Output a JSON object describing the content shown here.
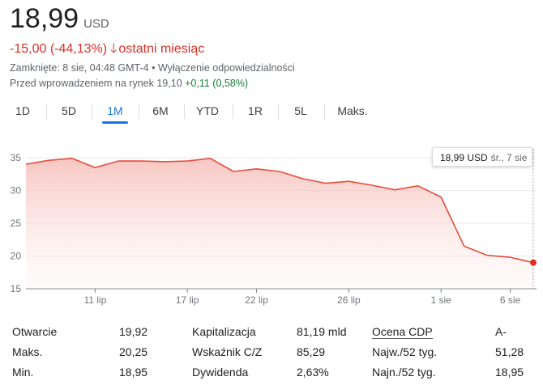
{
  "price": {
    "value": "18,99",
    "currency": "USD"
  },
  "change": {
    "text": "-15,00 (-44,13%)",
    "arrow": "🡓",
    "period": "ostatni miesiąc"
  },
  "meta": {
    "closed": "Zamknięte: 8 sie, 04:48 GMT-4",
    "bullet": "•",
    "disclaimer": "Wyłączenie odpowiedzialności",
    "premarket_label": "Przed wprowadzeniem na rynek",
    "premarket_price": "19,10",
    "premarket_change": "+0,11 (0,58%)"
  },
  "tabs": [
    "1D",
    "5D",
    "1M",
    "6M",
    "YTD",
    "1R",
    "5L",
    "Maks."
  ],
  "active_tab": "1M",
  "tooltip": {
    "price": "18,99 USD",
    "date": "śr., 7 sie"
  },
  "chart_data": {
    "type": "area",
    "x": [
      "8 lip",
      "9 lip",
      "10 lip",
      "11 lip",
      "12 lip",
      "15 lip",
      "16 lip",
      "17 lip",
      "18 lip",
      "19 lip",
      "22 lip",
      "23 lip",
      "24 lip",
      "25 lip",
      "26 lip",
      "29 lip",
      "30 lip",
      "31 lip",
      "1 sie",
      "2 sie",
      "5 sie",
      "6 sie",
      "7 sie"
    ],
    "values": [
      34.0,
      34.6,
      34.9,
      33.5,
      34.5,
      34.5,
      34.4,
      34.5,
      34.9,
      32.9,
      33.3,
      32.9,
      31.8,
      31.1,
      31.4,
      30.8,
      30.1,
      30.7,
      29.0,
      21.5,
      20.1,
      19.8,
      18.99
    ],
    "y_ticks": [
      "15",
      "20",
      "25",
      "30",
      "35"
    ],
    "ylim": [
      15,
      35
    ],
    "x_ticks": [
      {
        "label": "11 lip",
        "index": 3
      },
      {
        "label": "17 lip",
        "index": 7
      },
      {
        "label": "22 lip",
        "index": 10
      },
      {
        "label": "26 lip",
        "index": 14
      },
      {
        "label": "1 sie",
        "index": 18
      },
      {
        "label": "6 sie",
        "index": 21
      }
    ],
    "grid": true,
    "line_color": "#e74c3c"
  },
  "stats": {
    "col1": [
      {
        "label": "Otwarcie",
        "value": "19,92"
      },
      {
        "label": "Maks.",
        "value": "20,25"
      },
      {
        "label": "Min.",
        "value": "18,95"
      }
    ],
    "col2": [
      {
        "label": "Kapitalizacja",
        "value": "81,19 mld"
      },
      {
        "label": "Wskaźnik C/Z",
        "value": "85,29"
      },
      {
        "label": "Dywidenda",
        "value": "2,63%"
      }
    ],
    "col3": [
      {
        "label": "Ocena CDP",
        "value": "A-"
      },
      {
        "label": "Najw./52 tyg.",
        "value": "51,28"
      },
      {
        "label": "Najn./52 tyg.",
        "value": "18,95"
      }
    ]
  }
}
